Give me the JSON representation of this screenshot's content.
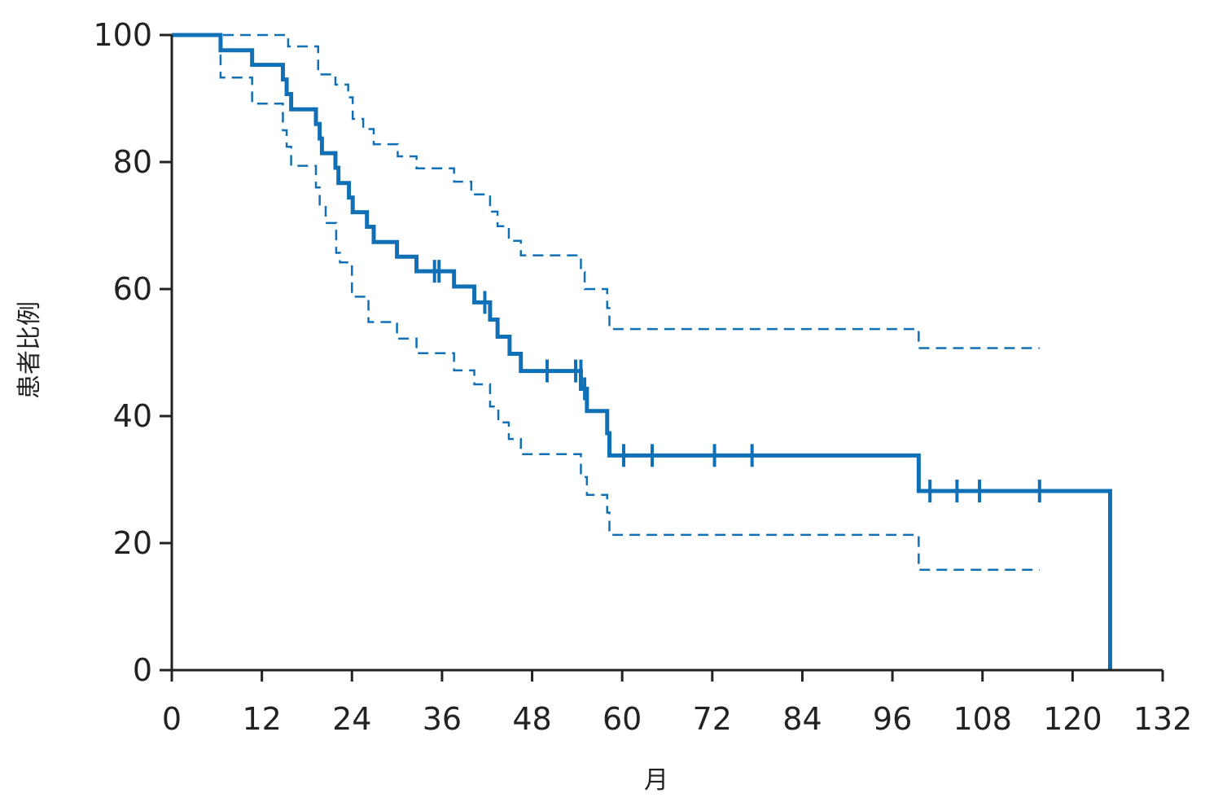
{
  "chart_data": {
    "type": "line",
    "subtype": "kaplan-meier-step",
    "xlabel": "月",
    "ylabel": "患者比例",
    "xlim": [
      0,
      132
    ],
    "ylim": [
      0,
      100
    ],
    "xticks": [
      0,
      12,
      24,
      36,
      48,
      60,
      72,
      84,
      96,
      108,
      120,
      132
    ],
    "yticks": [
      0,
      20,
      40,
      60,
      80,
      100
    ],
    "grid": false,
    "colors": {
      "series": "#1170b5",
      "axis": "#222222"
    },
    "series": [
      {
        "role": "estimate",
        "line_style": "solid",
        "steps": [
          [
            0,
            100
          ],
          [
            6.5,
            97.6
          ],
          [
            10.7,
            95.3
          ],
          [
            14.8,
            93.0
          ],
          [
            15.3,
            90.7
          ],
          [
            15.9,
            88.3
          ],
          [
            19.2,
            86.0
          ],
          [
            19.7,
            83.7
          ],
          [
            20,
            81.4
          ],
          [
            21.8,
            79.1
          ],
          [
            22.2,
            76.7
          ],
          [
            23.6,
            74.4
          ],
          [
            24.1,
            72.1
          ],
          [
            26.0,
            69.8
          ],
          [
            26.9,
            67.4
          ],
          [
            30.0,
            65.1
          ],
          [
            32.6,
            62.8
          ],
          [
            37.6,
            60.4
          ],
          [
            40.3,
            57.9
          ],
          [
            42.4,
            55.2
          ],
          [
            43.4,
            52.5
          ],
          [
            45.0,
            49.8
          ],
          [
            46.5,
            47.1
          ],
          [
            54.5,
            44.3
          ],
          [
            55.3,
            40.8
          ],
          [
            58.0,
            37.3
          ],
          [
            58.3,
            33.8
          ],
          [
            99.5,
            28.2
          ],
          [
            125.0,
            28.2
          ],
          [
            125.0,
            0
          ]
        ],
        "censored": [
          [
            35.0,
            62.8
          ],
          [
            35.6,
            62.8
          ],
          [
            41.7,
            57.9
          ],
          [
            50,
            47.1
          ],
          [
            53.8,
            47.1
          ],
          [
            54.5,
            47.1
          ],
          [
            55.0,
            44.3
          ],
          [
            60.2,
            33.8
          ],
          [
            64.0,
            33.8
          ],
          [
            72.3,
            33.8
          ],
          [
            77.3,
            33.8
          ],
          [
            101.0,
            28.2
          ],
          [
            104.6,
            28.2
          ],
          [
            107.6,
            28.2
          ],
          [
            115.6,
            28.2
          ]
        ]
      },
      {
        "role": "upper_ci",
        "line_style": "dashed",
        "steps": [
          [
            0,
            100
          ],
          [
            15.5,
            98.2
          ],
          [
            19.5,
            93.8
          ],
          [
            21.8,
            92.2
          ],
          [
            23.5,
            90.2
          ],
          [
            24.1,
            86.8
          ],
          [
            25.5,
            85.2
          ],
          [
            26.9,
            82.8
          ],
          [
            30.1,
            80.9
          ],
          [
            32.6,
            79.0
          ],
          [
            37.6,
            76.9
          ],
          [
            39.9,
            74.9
          ],
          [
            42.4,
            72.2
          ],
          [
            43.4,
            69.9
          ],
          [
            44.9,
            67.6
          ],
          [
            46.5,
            65.3
          ],
          [
            54.5,
            62.7
          ],
          [
            55.0,
            60.0
          ],
          [
            58.0,
            57.0
          ],
          [
            58.3,
            53.7
          ],
          [
            99.5,
            50.7
          ],
          [
            115.6,
            50.7
          ]
        ]
      },
      {
        "role": "lower_ci",
        "line_style": "dashed",
        "steps": [
          [
            0,
            100
          ],
          [
            6.5,
            93.3
          ],
          [
            10.7,
            89.2
          ],
          [
            14.8,
            85.0
          ],
          [
            15.3,
            82.4
          ],
          [
            15.9,
            79.4
          ],
          [
            19.2,
            76.0
          ],
          [
            19.7,
            73.1
          ],
          [
            20.5,
            70.4
          ],
          [
            21.9,
            65.7
          ],
          [
            22.4,
            64.2
          ],
          [
            24.0,
            58.8
          ],
          [
            26.2,
            54.8
          ],
          [
            30.0,
            52.2
          ],
          [
            32.6,
            49.9
          ],
          [
            37.6,
            47.2
          ],
          [
            40.3,
            45.0
          ],
          [
            42.4,
            41.5
          ],
          [
            43.5,
            39.0
          ],
          [
            44.9,
            36.4
          ],
          [
            46.5,
            34.0
          ],
          [
            54.5,
            30.4
          ],
          [
            55.3,
            27.6
          ],
          [
            58.0,
            24.8
          ],
          [
            58.3,
            21.3
          ],
          [
            99.5,
            15.8
          ],
          [
            115.6,
            15.8
          ]
        ]
      }
    ]
  }
}
